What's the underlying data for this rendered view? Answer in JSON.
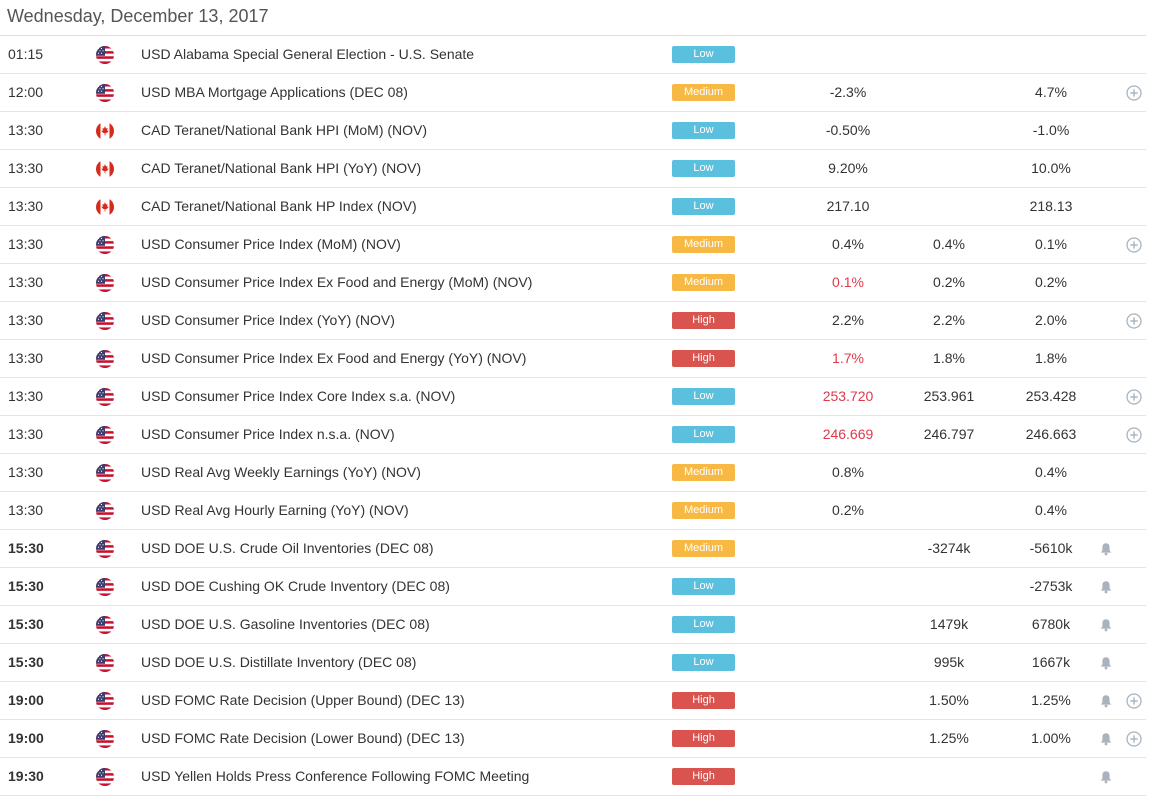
{
  "date": "Wednesday, December 13, 2017",
  "colors": {
    "low": "#5bc0de",
    "medium": "#f7b944",
    "high": "#d9534f",
    "negative_actual": "#e0394a"
  },
  "events": [
    {
      "time": "01:15",
      "bold": false,
      "country": "us",
      "title": "USD Alabama Special General Election - U.S. Senate",
      "importance": "Low",
      "actual": "",
      "forecast": "",
      "previous": "",
      "bell": false,
      "plus": false,
      "actual_negative": false
    },
    {
      "time": "12:00",
      "bold": false,
      "country": "us",
      "title": "USD MBA Mortgage Applications (DEC 08)",
      "importance": "Medium",
      "actual": "-2.3%",
      "forecast": "",
      "previous": "4.7%",
      "bell": false,
      "plus": true,
      "actual_negative": false
    },
    {
      "time": "13:30",
      "bold": false,
      "country": "ca",
      "title": "CAD Teranet/National Bank HPI (MoM) (NOV)",
      "importance": "Low",
      "actual": "-0.50%",
      "forecast": "",
      "previous": "-1.0%",
      "bell": false,
      "plus": false,
      "actual_negative": false
    },
    {
      "time": "13:30",
      "bold": false,
      "country": "ca",
      "title": "CAD Teranet/National Bank HPI (YoY) (NOV)",
      "importance": "Low",
      "actual": "9.20%",
      "forecast": "",
      "previous": "10.0%",
      "bell": false,
      "plus": false,
      "actual_negative": false
    },
    {
      "time": "13:30",
      "bold": false,
      "country": "ca",
      "title": "CAD Teranet/National Bank HP Index (NOV)",
      "importance": "Low",
      "actual": "217.10",
      "forecast": "",
      "previous": "218.13",
      "bell": false,
      "plus": false,
      "actual_negative": false
    },
    {
      "time": "13:30",
      "bold": false,
      "country": "us",
      "title": "USD Consumer Price Index (MoM) (NOV)",
      "importance": "Medium",
      "actual": "0.4%",
      "forecast": "0.4%",
      "previous": "0.1%",
      "bell": false,
      "plus": true,
      "actual_negative": false
    },
    {
      "time": "13:30",
      "bold": false,
      "country": "us",
      "title": "USD Consumer Price Index Ex Food and Energy (MoM) (NOV)",
      "importance": "Medium",
      "actual": "0.1%",
      "forecast": "0.2%",
      "previous": "0.2%",
      "bell": false,
      "plus": false,
      "actual_negative": true
    },
    {
      "time": "13:30",
      "bold": false,
      "country": "us",
      "title": "USD Consumer Price Index (YoY) (NOV)",
      "importance": "High",
      "actual": "2.2%",
      "forecast": "2.2%",
      "previous": "2.0%",
      "bell": false,
      "plus": true,
      "actual_negative": false
    },
    {
      "time": "13:30",
      "bold": false,
      "country": "us",
      "title": "USD Consumer Price Index Ex Food and Energy (YoY) (NOV)",
      "importance": "High",
      "actual": "1.7%",
      "forecast": "1.8%",
      "previous": "1.8%",
      "bell": false,
      "plus": false,
      "actual_negative": true
    },
    {
      "time": "13:30",
      "bold": false,
      "country": "us",
      "title": "USD Consumer Price Index Core Index s.a. (NOV)",
      "importance": "Low",
      "actual": "253.720",
      "forecast": "253.961",
      "previous": "253.428",
      "bell": false,
      "plus": true,
      "actual_negative": true
    },
    {
      "time": "13:30",
      "bold": false,
      "country": "us",
      "title": "USD Consumer Price Index n.s.a. (NOV)",
      "importance": "Low",
      "actual": "246.669",
      "forecast": "246.797",
      "previous": "246.663",
      "bell": false,
      "plus": true,
      "actual_negative": true
    },
    {
      "time": "13:30",
      "bold": false,
      "country": "us",
      "title": "USD Real Avg Weekly Earnings (YoY) (NOV)",
      "importance": "Medium",
      "actual": "0.8%",
      "forecast": "",
      "previous": "0.4%",
      "bell": false,
      "plus": false,
      "actual_negative": false
    },
    {
      "time": "13:30",
      "bold": false,
      "country": "us",
      "title": "USD Real Avg Hourly Earning (YoY) (NOV)",
      "importance": "Medium",
      "actual": "0.2%",
      "forecast": "",
      "previous": "0.4%",
      "bell": false,
      "plus": false,
      "actual_negative": false
    },
    {
      "time": "15:30",
      "bold": true,
      "country": "us",
      "title": "USD DOE U.S. Crude Oil Inventories (DEC 08)",
      "importance": "Medium",
      "actual": "",
      "forecast": "-3274k",
      "previous": "-5610k",
      "bell": true,
      "plus": false,
      "actual_negative": false
    },
    {
      "time": "15:30",
      "bold": true,
      "country": "us",
      "title": "USD DOE Cushing OK Crude Inventory (DEC 08)",
      "importance": "Low",
      "actual": "",
      "forecast": "",
      "previous": "-2753k",
      "bell": true,
      "plus": false,
      "actual_negative": false
    },
    {
      "time": "15:30",
      "bold": true,
      "country": "us",
      "title": "USD DOE U.S. Gasoline Inventories (DEC 08)",
      "importance": "Low",
      "actual": "",
      "forecast": "1479k",
      "previous": "6780k",
      "bell": true,
      "plus": false,
      "actual_negative": false
    },
    {
      "time": "15:30",
      "bold": true,
      "country": "us",
      "title": "USD DOE U.S. Distillate Inventory (DEC 08)",
      "importance": "Low",
      "actual": "",
      "forecast": "995k",
      "previous": "1667k",
      "bell": true,
      "plus": false,
      "actual_negative": false
    },
    {
      "time": "19:00",
      "bold": true,
      "country": "us",
      "title": "USD FOMC Rate Decision (Upper Bound) (DEC 13)",
      "importance": "High",
      "actual": "",
      "forecast": "1.50%",
      "previous": "1.25%",
      "bell": true,
      "plus": true,
      "actual_negative": false
    },
    {
      "time": "19:00",
      "bold": true,
      "country": "us",
      "title": "USD FOMC Rate Decision (Lower Bound) (DEC 13)",
      "importance": "High",
      "actual": "",
      "forecast": "1.25%",
      "previous": "1.00%",
      "bell": true,
      "plus": true,
      "actual_negative": false
    },
    {
      "time": "19:30",
      "bold": true,
      "country": "us",
      "title": "USD Yellen Holds Press Conference Following FOMC Meeting",
      "importance": "High",
      "actual": "",
      "forecast": "",
      "previous": "",
      "bell": true,
      "plus": false,
      "actual_negative": false
    }
  ]
}
